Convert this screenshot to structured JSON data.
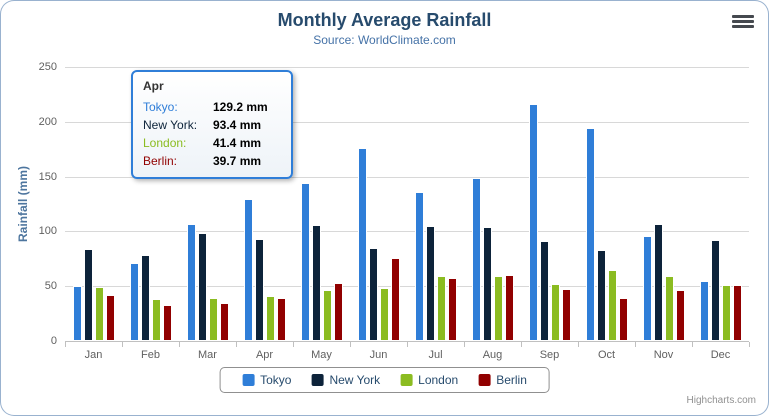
{
  "chart": {
    "title": "Monthly Average Rainfall",
    "subtitle": "Source: WorldClimate.com",
    "ylabel": "Rainfall (mm)",
    "credits": "Highcharts.com",
    "export_icon": "hamburger-menu"
  },
  "chart_data": {
    "type": "bar",
    "title": "Monthly Average Rainfall",
    "subtitle": "Source: WorldClimate.com",
    "xlabel": "",
    "ylabel": "Rainfall (mm)",
    "ylim": [
      0,
      250
    ],
    "yticks": [
      0,
      50,
      100,
      150,
      200,
      250
    ],
    "grid": true,
    "legend_position": "bottom",
    "value_suffix": " mm",
    "categories": [
      "Jan",
      "Feb",
      "Mar",
      "Apr",
      "May",
      "Jun",
      "Jul",
      "Aug",
      "Sep",
      "Oct",
      "Nov",
      "Dec"
    ],
    "series": [
      {
        "name": "Tokyo",
        "color": "#2f7ed8",
        "values": [
          49.9,
          71.5,
          106.4,
          129.2,
          144.0,
          176.0,
          135.6,
          148.5,
          216.4,
          194.1,
          95.6,
          54.4
        ]
      },
      {
        "name": "New York",
        "color": "#0d233a",
        "values": [
          83.6,
          78.8,
          98.5,
          93.4,
          106.0,
          84.5,
          105.0,
          104.3,
          91.2,
          83.5,
          106.6,
          92.3
        ]
      },
      {
        "name": "London",
        "color": "#8bbc21",
        "values": [
          48.9,
          38.8,
          39.3,
          41.4,
          47.0,
          48.3,
          59.0,
          59.6,
          52.4,
          65.2,
          59.3,
          51.2
        ]
      },
      {
        "name": "Berlin",
        "color": "#910000",
        "values": [
          42.4,
          33.2,
          34.5,
          39.7,
          52.6,
          75.5,
          57.4,
          60.4,
          47.6,
          39.1,
          46.8,
          51.1
        ]
      }
    ]
  },
  "tooltip": {
    "category": "Apr",
    "rows": [
      {
        "label": "Tokyo:",
        "value": "129.2 mm",
        "color": "#2f7ed8"
      },
      {
        "label": "New York:",
        "value": "93.4 mm",
        "color": "#0d233a"
      },
      {
        "label": "London:",
        "value": "41.4 mm",
        "color": "#8bbc21"
      },
      {
        "label": "Berlin:",
        "value": "39.7 mm",
        "color": "#910000"
      }
    ]
  }
}
